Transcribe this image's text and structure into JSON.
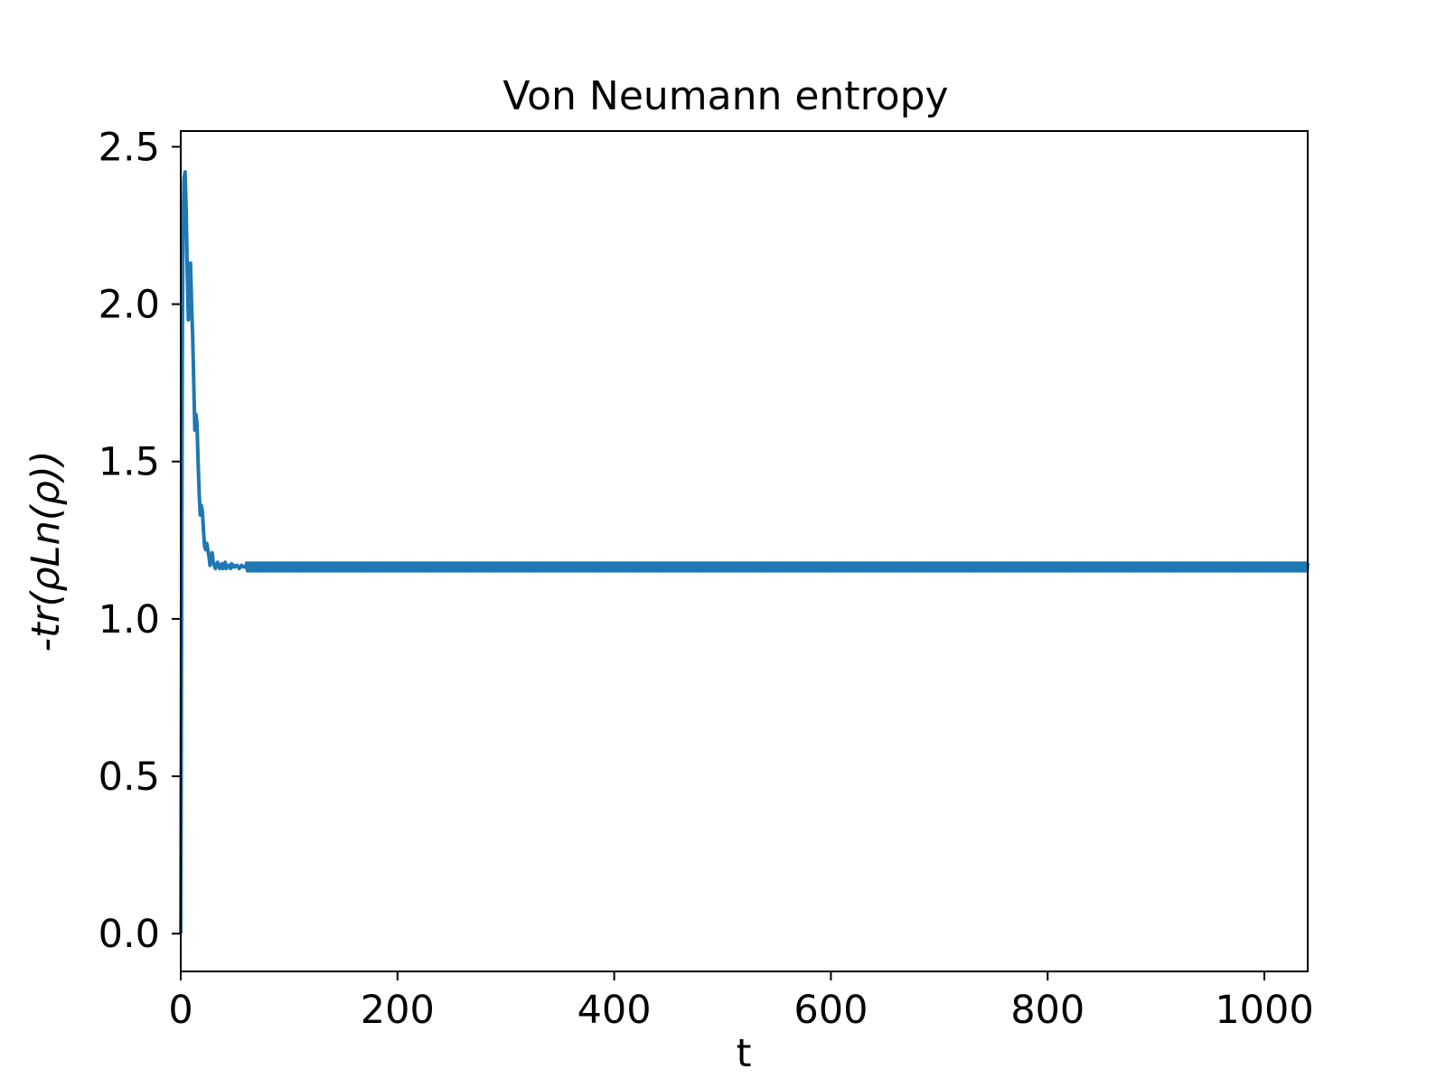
{
  "chart_data": {
    "type": "line",
    "title": "Von Neumann entropy",
    "xlabel": "t",
    "ylabel": "-tr(ρLn(ρ))",
    "xlim": [
      0,
      1040
    ],
    "ylim": [
      -0.12,
      2.55
    ],
    "xticks": [
      0,
      200,
      400,
      600,
      800,
      1000
    ],
    "yticks": [
      0.0,
      0.5,
      1.0,
      1.5,
      2.0,
      2.5
    ],
    "xtick_labels": [
      "0",
      "200",
      "400",
      "600",
      "800",
      "1000"
    ],
    "ytick_labels": [
      "0.0",
      "0.5",
      "1.0",
      "1.5",
      "2.0",
      "2.5"
    ],
    "grid": false,
    "legend": "none",
    "series": [
      {
        "color": "#1f77b4",
        "x": [
          0,
          0.5,
          1,
          1.5,
          2,
          3,
          4,
          5,
          6,
          7,
          8,
          9,
          10,
          11,
          12,
          13,
          14,
          15,
          16,
          17,
          18,
          19,
          20,
          21,
          22,
          23,
          24,
          25,
          26,
          27,
          28,
          29,
          30,
          31,
          32,
          33,
          34,
          35,
          36,
          37,
          38,
          39,
          40,
          41,
          42,
          43,
          44,
          45,
          46,
          47,
          48,
          49,
          50,
          52,
          54,
          56,
          58,
          60
        ],
        "values": [
          0.0,
          0.6,
          1.3,
          1.9,
          2.2,
          2.4,
          2.42,
          2.3,
          2.1,
          1.95,
          2.05,
          2.13,
          2.0,
          1.9,
          1.75,
          1.6,
          1.65,
          1.62,
          1.5,
          1.4,
          1.33,
          1.36,
          1.34,
          1.28,
          1.23,
          1.22,
          1.24,
          1.22,
          1.2,
          1.17,
          1.19,
          1.21,
          1.18,
          1.17,
          1.16,
          1.17,
          1.18,
          1.17,
          1.16,
          1.17,
          1.175,
          1.16,
          1.17,
          1.18,
          1.16,
          1.17,
          1.165,
          1.17,
          1.16,
          1.175,
          1.165,
          1.17,
          1.165,
          1.17,
          1.16,
          1.17,
          1.165,
          1.165
        ]
      }
    ],
    "steady_state": {
      "x_start": 60,
      "x_end": 1040,
      "center": 1.165,
      "amplitude": 0.012
    }
  }
}
